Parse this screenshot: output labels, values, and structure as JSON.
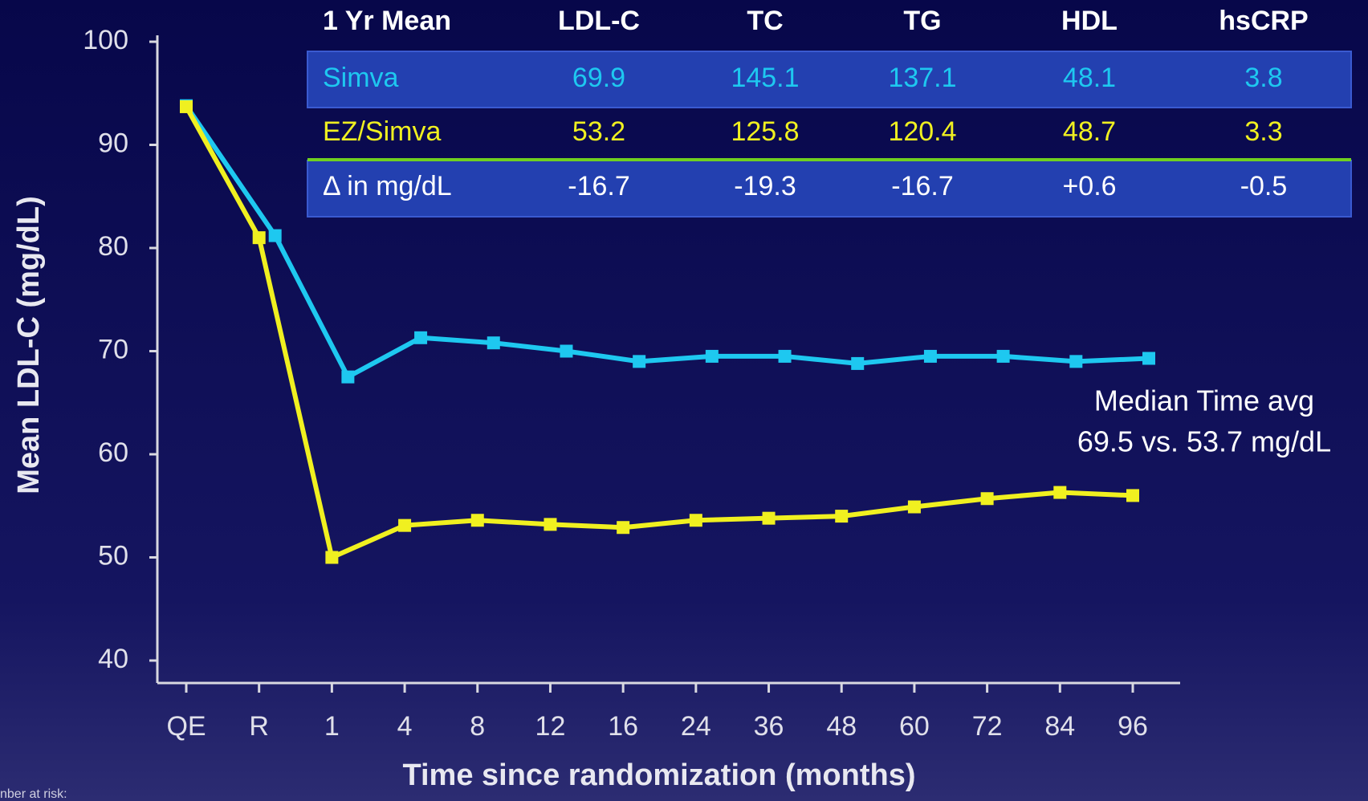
{
  "chart_data": {
    "type": "line",
    "x_label": "Time since randomization (months)",
    "y_label": "Mean LDL-C (mg/dL)",
    "categories": [
      "QE",
      "R",
      "1",
      "4",
      "8",
      "12",
      "16",
      "24",
      "36",
      "48",
      "60",
      "72",
      "84",
      "96"
    ],
    "series": [
      {
        "name": "Simva",
        "color": "#1ec8f0",
        "values": [
          93.8,
          81.2,
          67.5,
          71.3,
          70.8,
          70.0,
          69.0,
          69.5,
          69.5,
          68.8,
          69.5,
          69.5,
          69.0,
          69.3
        ]
      },
      {
        "name": "EZ/Simva",
        "color": "#f0f020",
        "values": [
          93.7,
          81.0,
          50.0,
          53.1,
          53.6,
          53.2,
          52.9,
          53.6,
          53.8,
          54.0,
          54.9,
          55.7,
          56.3,
          56.0
        ]
      }
    ],
    "ylim": [
      40,
      100
    ],
    "yticks": [
      40,
      50,
      60,
      70,
      80,
      90,
      100
    ],
    "annotation": [
      "Median Time avg",
      "69.5 vs. 53.7 mg/dL"
    ],
    "footnote": "nber at risk:"
  },
  "table": {
    "header": [
      "1 Yr Mean",
      "LDL-C",
      "TC",
      "TG",
      "HDL",
      "hsCRP"
    ],
    "rows": [
      [
        "Simva",
        "69.9",
        "145.1",
        "137.1",
        "48.1",
        "3.8"
      ],
      [
        "EZ/Simva",
        "53.2",
        "125.8",
        "120.4",
        "48.7",
        "3.3"
      ],
      [
        "Δ in mg/dL",
        "-16.7",
        "-19.3",
        "-16.7",
        "+0.6",
        "-0.5"
      ]
    ]
  }
}
